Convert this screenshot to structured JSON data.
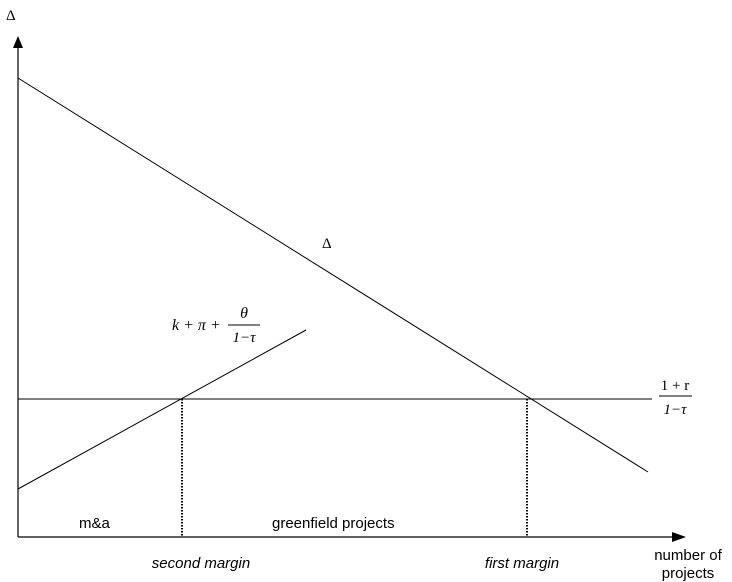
{
  "diagram": {
    "y_axis_label": "Δ",
    "x_axis_label_line1": "number of",
    "x_axis_label_line2": "projects",
    "delta_curve_label": "Δ",
    "cost_curve_label": {
      "lead": "k + π +",
      "numerator": "θ",
      "denominator": "1−τ"
    },
    "threshold_label": {
      "numerator": "1 + r",
      "denominator": "1−τ"
    },
    "regions": {
      "ma": "m&a",
      "greenfield": "greenfield projects"
    },
    "margins": {
      "second": "second margin",
      "first": "first margin"
    },
    "colors": {
      "line": "#000000",
      "background": "#ffffff"
    }
  }
}
